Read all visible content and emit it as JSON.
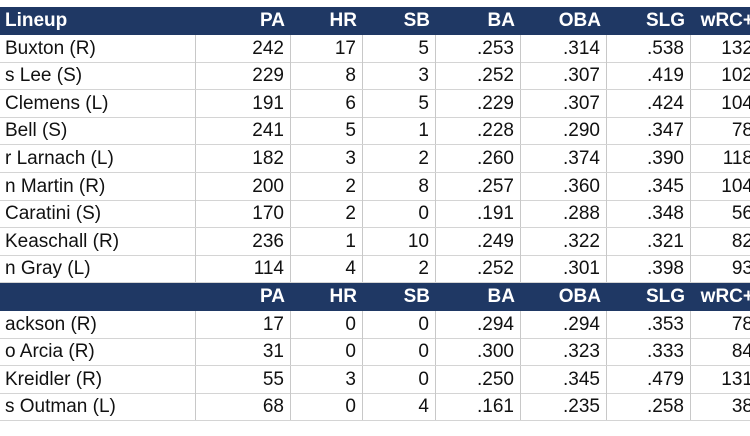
{
  "sections": [
    {
      "title": "Lineup",
      "columns": [
        "PA",
        "HR",
        "SB",
        "BA",
        "OBA",
        "SLG",
        "wRC+"
      ],
      "rows": [
        [
          "Buxton (R)",
          "242",
          "17",
          "5",
          ".253",
          ".314",
          ".538",
          "132"
        ],
        [
          "s Lee (S)",
          "229",
          "8",
          "3",
          ".252",
          ".307",
          ".419",
          "102"
        ],
        [
          "Clemens (L)",
          "191",
          "6",
          "5",
          ".229",
          ".307",
          ".424",
          "104"
        ],
        [
          "Bell (S)",
          "241",
          "5",
          "1",
          ".228",
          ".290",
          ".347",
          "78"
        ],
        [
          "r Larnach (L)",
          "182",
          "3",
          "2",
          ".260",
          ".374",
          ".390",
          "118"
        ],
        [
          "n Martin (R)",
          "200",
          "2",
          "8",
          ".257",
          ".360",
          ".345",
          "104"
        ],
        [
          "Caratini (S)",
          "170",
          "2",
          "0",
          ".191",
          ".288",
          ".348",
          "56"
        ],
        [
          "Keaschall (R)",
          "236",
          "1",
          "10",
          ".249",
          ".322",
          ".321",
          "82"
        ],
        [
          "n Gray (L)",
          "114",
          "4",
          "2",
          ".252",
          ".301",
          ".398",
          "93"
        ]
      ]
    },
    {
      "columns": [
        "PA",
        "HR",
        "SB",
        "BA",
        "OBA",
        "SLG",
        "wRC+"
      ],
      "rows": [
        [
          "ackson (R)",
          "17",
          "0",
          "0",
          ".294",
          ".294",
          ".353",
          "78"
        ],
        [
          "o Arcia (R)",
          "31",
          "0",
          "0",
          ".300",
          ".323",
          ".333",
          "84"
        ],
        [
          "Kreidler (R)",
          "55",
          "3",
          "0",
          ".250",
          ".345",
          ".479",
          "131"
        ],
        [
          "s Outman (L)",
          "68",
          "0",
          "4",
          ".161",
          ".235",
          ".258",
          "38"
        ]
      ]
    }
  ]
}
